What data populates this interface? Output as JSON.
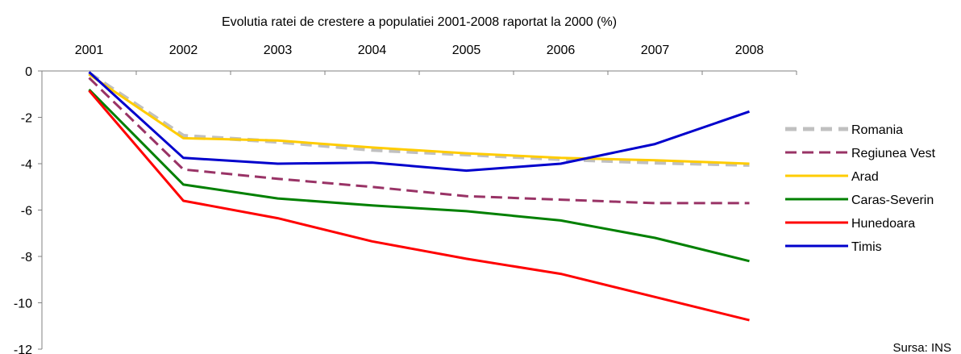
{
  "chart_data": {
    "type": "line",
    "title": "Evolutia ratei de crestere a populatiei  2001-2008 raportat la 2000 (%)",
    "xlabel": "",
    "ylabel": "",
    "x": [
      "2001",
      "2002",
      "2003",
      "2004",
      "2005",
      "2006",
      "2007",
      "2008"
    ],
    "ylim": [
      -12,
      0
    ],
    "yticks": [
      0,
      -2,
      -4,
      -6,
      -8,
      -10,
      -12
    ],
    "x_axis_position": "top",
    "grid": false,
    "legend_position": "right",
    "source": "Sursa: INS",
    "series": [
      {
        "name": "Romania",
        "color": "#c0c0c0",
        "style": "dashed-thick",
        "values": [
          -0.1,
          -2.8,
          -3.05,
          -3.4,
          -3.6,
          -3.8,
          -3.95,
          -4.05
        ]
      },
      {
        "name": "Regiunea Vest",
        "color": "#993366",
        "style": "dashed",
        "values": [
          -0.3,
          -4.25,
          -4.65,
          -5.0,
          -5.4,
          -5.55,
          -5.7,
          -5.7
        ]
      },
      {
        "name": "Arad",
        "color": "#ffcc00",
        "style": "solid",
        "values": [
          -0.15,
          -2.9,
          -3.0,
          -3.3,
          -3.55,
          -3.75,
          -3.85,
          -4.0
        ]
      },
      {
        "name": "Caras-Severin",
        "color": "#008000",
        "style": "solid",
        "values": [
          -0.8,
          -4.9,
          -5.5,
          -5.8,
          -6.05,
          -6.45,
          -7.2,
          -8.2
        ]
      },
      {
        "name": "Hunedoara",
        "color": "#ff0000",
        "style": "solid",
        "values": [
          -0.85,
          -5.6,
          -6.35,
          -7.35,
          -8.1,
          -8.75,
          -9.75,
          -10.75
        ]
      },
      {
        "name": "Timis",
        "color": "#0000cc",
        "style": "solid",
        "values": [
          -0.05,
          -3.75,
          -4.0,
          -3.95,
          -4.3,
          -4.0,
          -3.15,
          -1.75
        ]
      }
    ]
  }
}
